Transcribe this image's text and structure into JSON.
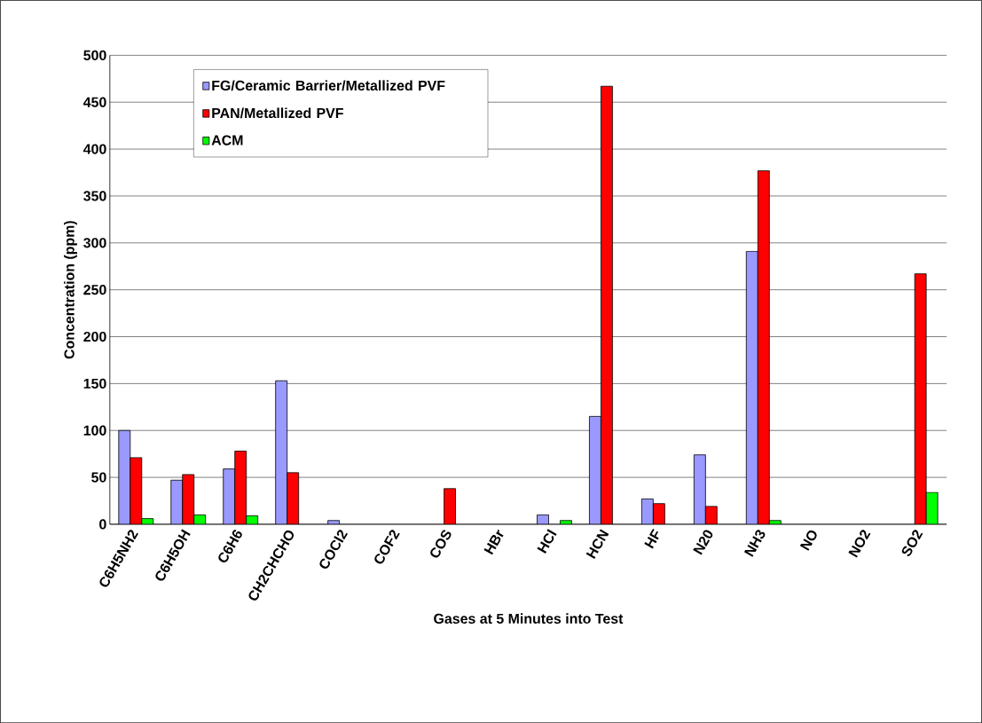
{
  "chart_data": {
    "type": "bar",
    "xlabel": "Gases at 5 Minutes into Test",
    "ylabel": "Concentration (ppm)",
    "categories": [
      "C6H5NH2",
      "C6H5OH",
      "C6H6",
      "CH2CHCHO",
      "COCl2",
      "COF2",
      "COS",
      "HBr",
      "HCl",
      "HCN",
      "HF",
      "N20",
      "NH3",
      "NO",
      "NO2",
      "SO2"
    ],
    "series": [
      {
        "name": "FG/Ceramic Barrier/Metallized PVF",
        "color": "#9999ff",
        "values": [
          100,
          47,
          59,
          153,
          4,
          null,
          null,
          null,
          10,
          115,
          27,
          74,
          291,
          null,
          null,
          null
        ]
      },
      {
        "name": "PAN/Metallized PVF",
        "color": "#ff0000",
        "values": [
          71,
          53,
          78,
          55,
          null,
          null,
          38,
          null,
          null,
          467,
          22,
          19,
          377,
          null,
          null,
          267
        ]
      },
      {
        "name": "ACM",
        "color": "#00ff00",
        "values": [
          6,
          10,
          9,
          null,
          null,
          null,
          null,
          null,
          4,
          null,
          null,
          null,
          4,
          null,
          null,
          34
        ]
      }
    ],
    "ylim": [
      0,
      500
    ],
    "yticks": [
      0,
      50,
      100,
      150,
      200,
      250,
      300,
      350,
      400,
      450,
      500
    ],
    "grid": "y",
    "legend": "top left"
  }
}
